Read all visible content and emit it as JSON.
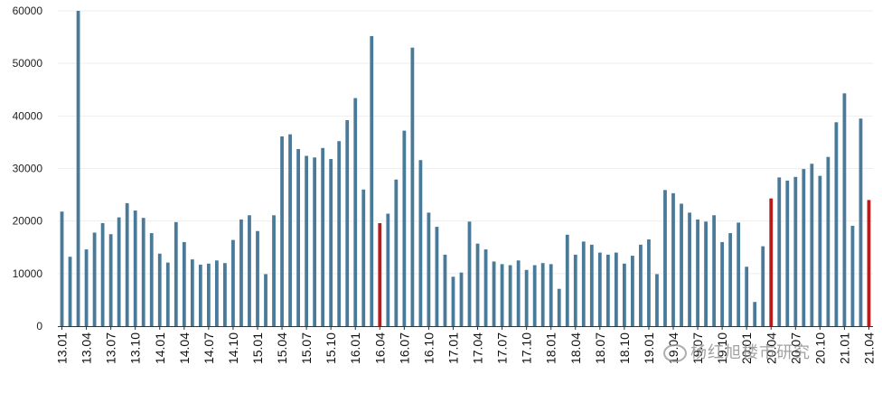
{
  "chart_data": {
    "type": "bar",
    "title": "",
    "xlabel": "",
    "ylabel": "",
    "ylim": [
      0,
      60000
    ],
    "yticks": [
      0,
      10000,
      20000,
      30000,
      40000,
      50000,
      60000
    ],
    "grid": true,
    "legend": "none",
    "bar_color": "#4a7a99",
    "highlight_color": "#b71c1c",
    "x_tick_labels": [
      "13.01",
      "13.04",
      "13.07",
      "13.10",
      "14.01",
      "14.04",
      "14.07",
      "14.10",
      "15.01",
      "15.04",
      "15.07",
      "15.10",
      "16.01",
      "16.04",
      "16.07",
      "16.10",
      "17.01",
      "17.04",
      "17.07",
      "17.10",
      "18.01",
      "18.04",
      "18.07",
      "18.10",
      "19.01",
      "19.04",
      "19.07",
      "19.10",
      "20.01",
      "20.04",
      "20.07",
      "20.10",
      "21.01",
      "21.04"
    ],
    "values": [
      21800,
      13200,
      60000,
      14600,
      17800,
      19600,
      17500,
      20700,
      23400,
      22000,
      20600,
      17700,
      13800,
      12100,
      19800,
      16000,
      12700,
      11700,
      11900,
      12500,
      12000,
      16400,
      20300,
      21100,
      18100,
      9900,
      21100,
      36100,
      36500,
      33700,
      32400,
      32100,
      33900,
      31800,
      35200,
      39200,
      43400,
      26000,
      55200,
      19600,
      21400,
      27900,
      37200,
      53000,
      31600,
      21600,
      18900,
      13600,
      9400,
      10200,
      19900,
      15700,
      14600,
      12300,
      11800,
      11600,
      12500,
      10700,
      11600,
      12000,
      11800,
      7100,
      17400,
      13600,
      16100,
      15500,
      14000,
      13600,
      14000,
      11900,
      13400,
      15500,
      16500,
      9900,
      25900,
      25300,
      23300,
      21600,
      20300,
      19900,
      21100,
      16000,
      17700,
      19700,
      11300,
      4600,
      15200,
      24300,
      28300,
      27700,
      28400,
      29900,
      30900,
      28600,
      32200,
      38800,
      44300,
      19100,
      39500,
      24000
    ],
    "highlight_indices": [
      39,
      87,
      99
    ]
  },
  "watermark": {
    "text": "杨红旭楼市研究",
    "icon": "wechat-icon"
  }
}
